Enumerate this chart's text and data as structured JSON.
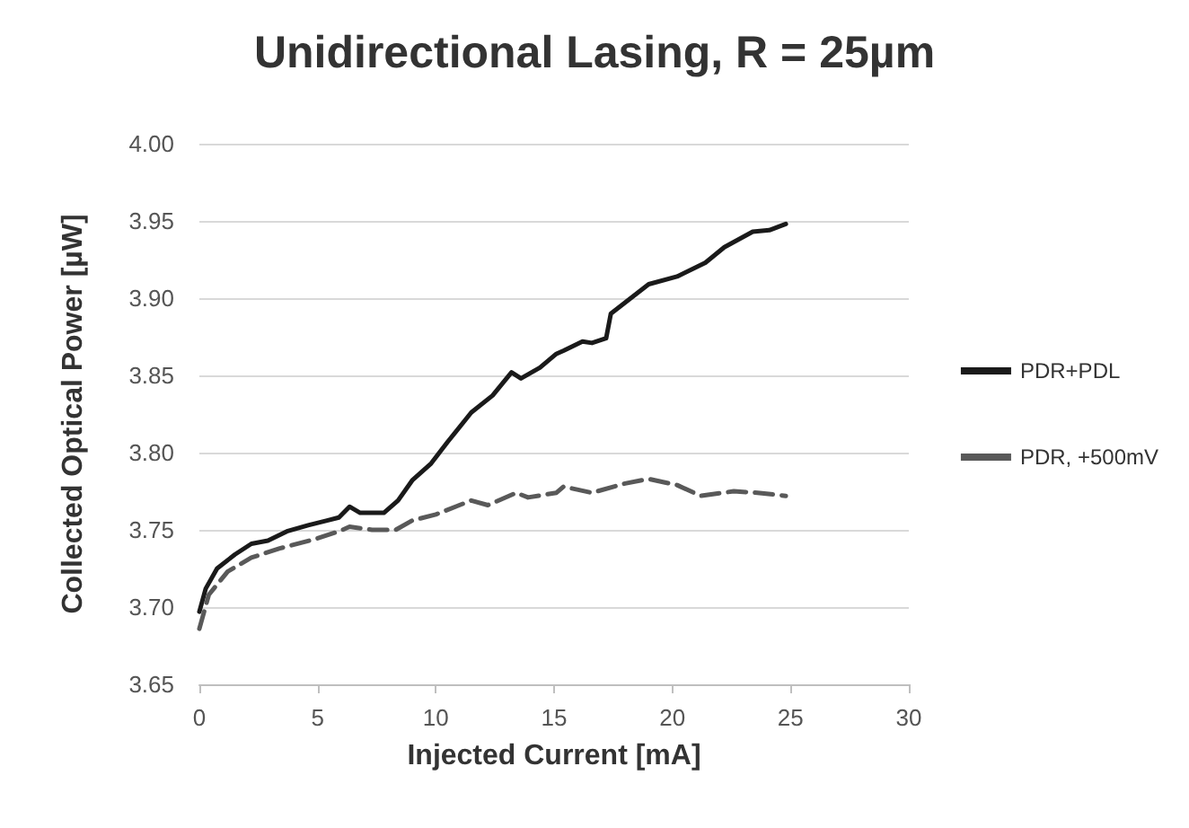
{
  "chart_data": {
    "type": "line",
    "title": "Unidirectional Lasing, R = 25µm",
    "xlabel": "Injected Current [mA]",
    "ylabel": "Collected Optical Power [µW]",
    "xlim": [
      0,
      30
    ],
    "xticks": [
      0,
      5,
      10,
      15,
      20,
      25,
      30
    ],
    "ylim": [
      3.65,
      4.0
    ],
    "yticks": [
      {
        "value": 3.65,
        "label": "3.65"
      },
      {
        "value": 3.7,
        "label": "3.70"
      },
      {
        "value": 3.75,
        "label": "3.75"
      },
      {
        "value": 3.8,
        "label": "3.80"
      },
      {
        "value": 3.85,
        "label": "3.85"
      },
      {
        "value": 3.9,
        "label": "3.90"
      },
      {
        "value": 3.95,
        "label": "3.95"
      },
      {
        "value": 4.0,
        "label": "4.00"
      }
    ],
    "grid": "y",
    "legend": "right",
    "marker": "none",
    "series": [
      {
        "name": "PDR+PDL",
        "color": "#1a1a1a",
        "line_style": "solid",
        "x": [
          0,
          0.27,
          0.75,
          1.5,
          2.2,
          2.9,
          3.7,
          4.6,
          5.4,
          5.9,
          6.35,
          6.8,
          7.8,
          8.4,
          9.0,
          9.8,
          10.5,
          11.5,
          12.4,
          13.2,
          13.6,
          14.4,
          15.1,
          15.4,
          16.2,
          16.6,
          17.2,
          17.4,
          19.0,
          20.2,
          21.4,
          22.2,
          23.4,
          24.1,
          24.8
        ],
        "values": [
          3.697,
          3.712,
          3.725,
          3.734,
          3.741,
          3.743,
          3.749,
          3.753,
          3.756,
          3.758,
          3.765,
          3.761,
          3.761,
          3.769,
          3.782,
          3.793,
          3.807,
          3.826,
          3.837,
          3.852,
          3.848,
          3.855,
          3.864,
          3.866,
          3.872,
          3.871,
          3.874,
          3.89,
          3.909,
          3.914,
          3.923,
          3.933,
          3.943,
          3.944,
          3.948
        ]
      },
      {
        "name": "PDR, +500mV",
        "color": "#595959",
        "line_style": "dashed",
        "x": [
          0,
          0.4,
          1.2,
          2.2,
          3.4,
          4.9,
          5.9,
          6.35,
          7.3,
          8.3,
          9.0,
          10.0,
          11.5,
          12.2,
          13.4,
          13.9,
          15.1,
          15.4,
          16.6,
          18.0,
          19.0,
          20.2,
          21.2,
          22.6,
          23.6,
          24.8
        ],
        "values": [
          3.686,
          3.708,
          3.723,
          3.732,
          3.738,
          3.744,
          3.749,
          3.752,
          3.75,
          3.75,
          3.756,
          3.76,
          3.769,
          3.766,
          3.774,
          3.771,
          3.774,
          3.778,
          3.774,
          3.78,
          3.783,
          3.779,
          3.772,
          3.775,
          3.774,
          3.772
        ]
      }
    ]
  }
}
